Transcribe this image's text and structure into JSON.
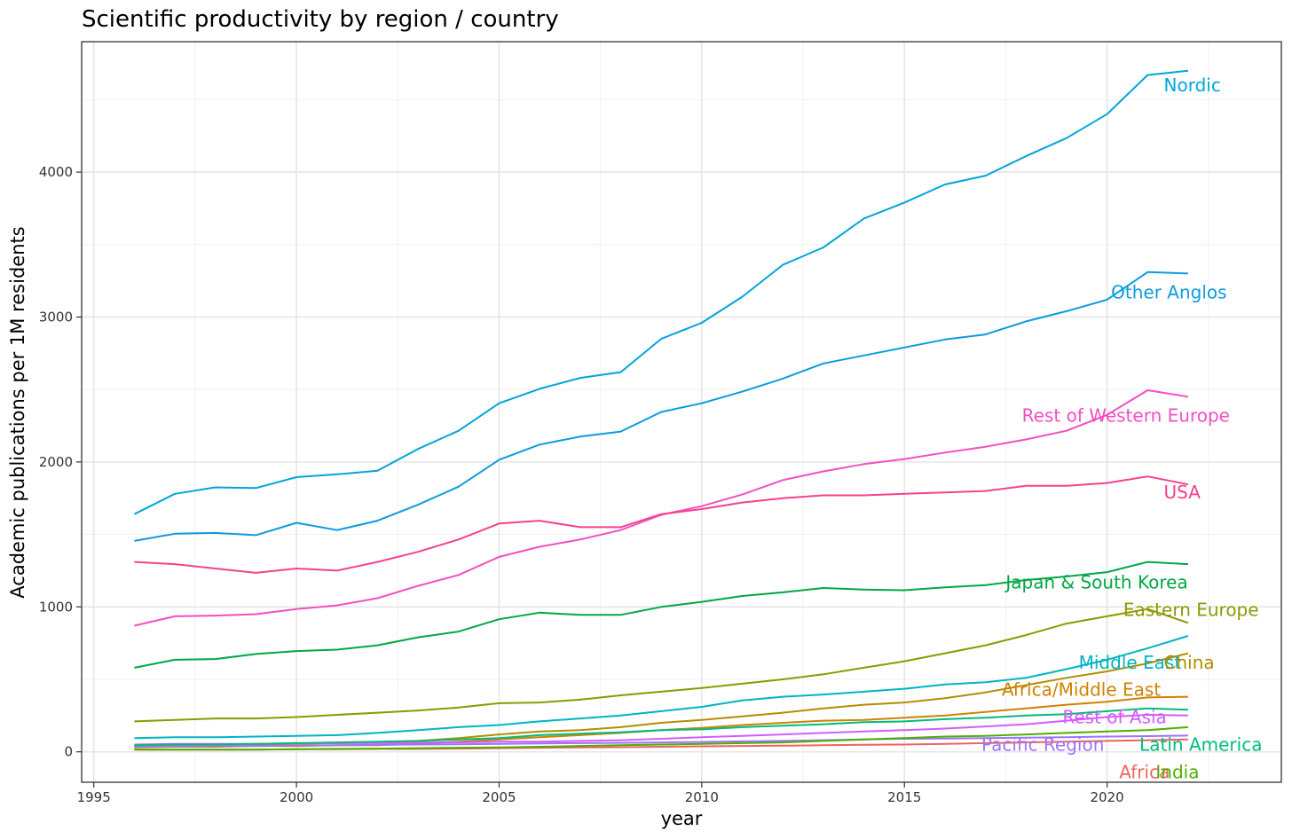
{
  "chart_data": {
    "type": "line",
    "title": "Scientific productivity by region / country",
    "xlabel": "year",
    "ylabel": "Academic publications per 1M residents",
    "xlim": [
      1994.7,
      2024.3
    ],
    "ylim": [
      -210,
      4900
    ],
    "x_ticks": [
      1995,
      2000,
      2005,
      2010,
      2015,
      2020
    ],
    "y_ticks": [
      0,
      1000,
      2000,
      3000,
      4000
    ],
    "grid": true,
    "legend": "direct labels at line ends",
    "x": [
      1996,
      1997,
      1998,
      1999,
      2000,
      2001,
      2002,
      2003,
      2004,
      2005,
      2006,
      2007,
      2008,
      2009,
      2010,
      2011,
      2012,
      2013,
      2014,
      2015,
      2016,
      2017,
      2018,
      2019,
      2020,
      2021,
      2022
    ],
    "series": [
      {
        "name": "Nordic",
        "color": "#00A5DC",
        "label_x": 2021.4,
        "label_y": 4600,
        "values": [
          1640,
          1780,
          1825,
          1820,
          1895,
          1915,
          1940,
          2090,
          2215,
          2405,
          2505,
          2580,
          2620,
          2850,
          2960,
          3140,
          3360,
          3480,
          3680,
          3790,
          3915,
          3975,
          4110,
          4235,
          4400,
          4670,
          4700
        ]
      },
      {
        "name": "Other Anglos",
        "color": "#0C9BDE",
        "label_x": 2020.1,
        "label_y": 3170,
        "values": [
          1455,
          1505,
          1510,
          1495,
          1580,
          1530,
          1595,
          1705,
          1830,
          2015,
          2120,
          2175,
          2210,
          2345,
          2405,
          2485,
          2575,
          2680,
          2735,
          2790,
          2845,
          2880,
          2970,
          3040,
          3120,
          3310,
          3300
        ]
      },
      {
        "name": "Rest of Western Europe",
        "color": "#F14FC1",
        "label_x": 2017.9,
        "label_y": 2320,
        "values": [
          870,
          935,
          940,
          950,
          985,
          1010,
          1060,
          1145,
          1220,
          1345,
          1415,
          1465,
          1530,
          1635,
          1695,
          1775,
          1875,
          1935,
          1985,
          2020,
          2065,
          2105,
          2155,
          2215,
          2325,
          2495,
          2450
        ]
      },
      {
        "name": "USA",
        "color": "#F5418F",
        "label_x": 2021.4,
        "label_y": 1790,
        "values": [
          1310,
          1295,
          1265,
          1235,
          1265,
          1250,
          1310,
          1380,
          1465,
          1575,
          1595,
          1550,
          1550,
          1640,
          1675,
          1720,
          1750,
          1770,
          1770,
          1780,
          1790,
          1800,
          1835,
          1835,
          1855,
          1900,
          1845
        ]
      },
      {
        "name": "Japan & South Korea",
        "color": "#00A844",
        "label_x": 2017.5,
        "label_y": 1170,
        "values": [
          580,
          635,
          640,
          675,
          695,
          705,
          735,
          790,
          830,
          915,
          960,
          945,
          945,
          1000,
          1035,
          1075,
          1100,
          1130,
          1120,
          1115,
          1135,
          1150,
          1185,
          1210,
          1240,
          1310,
          1295
        ]
      },
      {
        "name": "Eastern Europe",
        "color": "#8C9A00",
        "label_x": 2020.4,
        "label_y": 980,
        "values": [
          210,
          220,
          230,
          230,
          240,
          255,
          270,
          285,
          305,
          335,
          340,
          360,
          390,
          415,
          440,
          470,
          500,
          535,
          580,
          625,
          680,
          735,
          805,
          885,
          935,
          985,
          890
        ]
      },
      {
        "name": "Middle East",
        "color": "#00B5C3",
        "label_x": 2019.3,
        "label_y": 615,
        "values": [
          95,
          100,
          100,
          105,
          110,
          115,
          130,
          150,
          170,
          185,
          210,
          230,
          250,
          280,
          310,
          355,
          380,
          395,
          415,
          435,
          465,
          480,
          510,
          570,
          635,
          715,
          800
        ]
      },
      {
        "name": "China",
        "color": "#B28E00",
        "label_x": 2021.4,
        "label_y": 615,
        "values": [
          40,
          45,
          50,
          50,
          55,
          60,
          65,
          75,
          95,
          120,
          140,
          150,
          170,
          200,
          220,
          245,
          270,
          300,
          325,
          340,
          370,
          410,
          460,
          510,
          555,
          610,
          680
        ]
      },
      {
        "name": "Africa/Middle East",
        "color": "#D08200",
        "label_x": 2017.4,
        "label_y": 430,
        "values": [
          30,
          35,
          35,
          40,
          40,
          45,
          45,
          55,
          70,
          85,
          100,
          115,
          130,
          150,
          165,
          185,
          200,
          215,
          220,
          235,
          250,
          275,
          300,
          325,
          345,
          375,
          380
        ]
      },
      {
        "name": "Rest of Asia",
        "color": "#D45CFF",
        "label_x": 2018.9,
        "label_y": 240,
        "values": [
          50,
          55,
          55,
          55,
          60,
          60,
          60,
          65,
          65,
          70,
          70,
          75,
          80,
          90,
          100,
          110,
          120,
          130,
          140,
          150,
          160,
          175,
          190,
          215,
          240,
          255,
          250
        ]
      },
      {
        "name": "Pacific Region",
        "color": "#9F73FA",
        "label_x": 2016.9,
        "label_y": 50,
        "values": [
          35,
          38,
          40,
          40,
          42,
          45,
          48,
          50,
          52,
          55,
          58,
          60,
          62,
          65,
          68,
          72,
          75,
          80,
          85,
          90,
          92,
          95,
          98,
          100,
          105,
          108,
          112
        ]
      },
      {
        "name": "Latin America",
        "color": "#00BC7E",
        "label_x": 2020.8,
        "label_y": 50,
        "values": [
          45,
          50,
          50,
          55,
          60,
          65,
          70,
          75,
          85,
          95,
          115,
          125,
          135,
          150,
          155,
          170,
          180,
          190,
          205,
          210,
          225,
          235,
          250,
          260,
          280,
          300,
          290
        ]
      },
      {
        "name": "Africa",
        "color": "#EE645E",
        "label_x": 2020.3,
        "label_y": -140,
        "values": [
          15,
          15,
          15,
          15,
          18,
          18,
          20,
          20,
          22,
          25,
          28,
          30,
          32,
          35,
          38,
          40,
          42,
          45,
          48,
          50,
          55,
          60,
          65,
          70,
          75,
          80,
          85
        ]
      },
      {
        "name": "India",
        "color": "#4FAF00",
        "label_x": 2021.2,
        "label_y": -140,
        "values": [
          15,
          15,
          15,
          15,
          18,
          20,
          22,
          25,
          28,
          30,
          35,
          40,
          45,
          50,
          55,
          60,
          65,
          75,
          85,
          95,
          105,
          110,
          120,
          130,
          140,
          150,
          170
        ]
      }
    ]
  }
}
